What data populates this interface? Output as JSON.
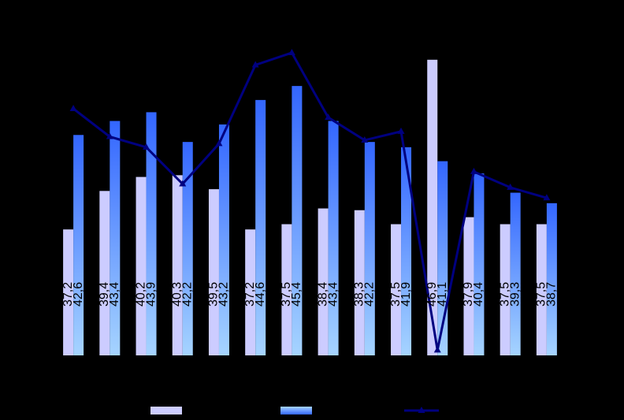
{
  "chart_data": {
    "type": "bar",
    "categories": [
      null,
      null,
      null,
      null,
      null,
      null,
      null,
      null,
      null,
      null,
      null,
      null,
      null,
      null
    ],
    "series": [
      {
        "type": "bar",
        "color": "#ccccff",
        "values": [
          37.2,
          39.4,
          40.2,
          40.3,
          39.5,
          37.2,
          37.5,
          38.4,
          38.3,
          37.5,
          46.9,
          37.9,
          37.5,
          37.5
        ],
        "value_labels": [
          "37,2",
          "39,4",
          "40,2",
          "40,3",
          "39,5",
          "37,2",
          "37,5",
          "38,4",
          "38,3",
          "37,5",
          "46,9",
          "37,9",
          "37,5",
          "37,5"
        ]
      },
      {
        "type": "bar",
        "color": "#3366ff",
        "values": [
          42.6,
          43.4,
          43.9,
          42.2,
          43.2,
          44.6,
          45.4,
          43.4,
          42.2,
          41.9,
          41.1,
          40.4,
          39.3,
          38.7
        ],
        "value_labels": [
          "42,6",
          "43,4",
          "43,9",
          "42,2",
          "43,2",
          "44,6",
          "45,4",
          "43,4",
          "42,2",
          "41,9",
          "41,1",
          "40,4",
          "39,3",
          "38,7"
        ]
      },
      {
        "type": "line",
        "color": "#000080",
        "values": [
          44.1,
          42.5,
          41.9,
          39.8,
          42.1,
          46.6,
          47.3,
          43.6,
          42.3,
          42.8,
          30.3,
          40.5,
          39.6,
          39.0
        ]
      }
    ],
    "ylim": [
      30,
      50
    ]
  }
}
